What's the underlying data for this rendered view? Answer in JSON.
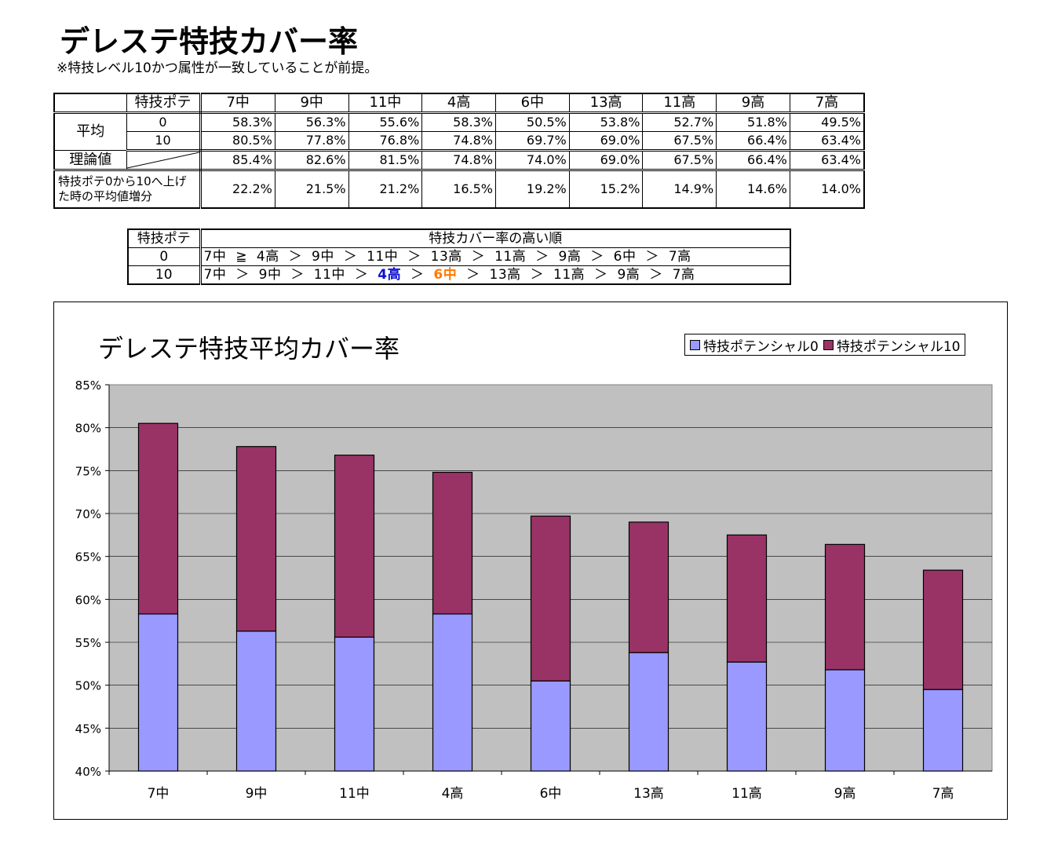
{
  "page": {
    "title": "デレステ特技カバー率",
    "note": "※特技レベル10かつ属性が一致していることが前提。"
  },
  "stats_table": {
    "corner": "",
    "header_label": "特技ポテ",
    "columns": [
      "7中",
      "9中",
      "11中",
      "4高",
      "6中",
      "13高",
      "11高",
      "9高",
      "7高"
    ],
    "avg_label": "平均",
    "avg_rows": [
      {
        "sub": "0",
        "values": [
          "58.3%",
          "56.3%",
          "55.6%",
          "58.3%",
          "50.5%",
          "53.8%",
          "52.7%",
          "51.8%",
          "49.5%"
        ]
      },
      {
        "sub": "10",
        "values": [
          "80.5%",
          "77.8%",
          "76.8%",
          "74.8%",
          "69.7%",
          "69.0%",
          "67.5%",
          "66.4%",
          "63.4%"
        ]
      }
    ],
    "theory_label": "理論値",
    "theory_values": [
      "85.4%",
      "82.6%",
      "81.5%",
      "74.8%",
      "74.0%",
      "69.0%",
      "67.5%",
      "66.4%",
      "63.4%"
    ],
    "increase_label": "特技ポテ0から10へ上げた時の平均値増分",
    "increase_values": [
      "22.2%",
      "21.5%",
      "21.2%",
      "16.5%",
      "19.2%",
      "15.2%",
      "14.9%",
      "14.6%",
      "14.0%"
    ]
  },
  "rank_table": {
    "header_label": "特技ポテ",
    "header_title": "特技カバー率の高い順",
    "rows": [
      {
        "pote": "0",
        "order": [
          "7中",
          "≧",
          "4高",
          "＞",
          "9中",
          "＞",
          "11中",
          "＞",
          "13高",
          "＞",
          "11高",
          "＞",
          "9高",
          "＞",
          "6中",
          "＞",
          "7高"
        ]
      },
      {
        "pote": "10",
        "order": [
          "7中",
          "＞",
          "9中",
          "＞",
          "11中",
          "＞",
          "4高",
          "＞",
          "6中",
          "＞",
          "13高",
          "＞",
          "11高",
          "＞",
          "9高",
          "＞",
          "7高"
        ]
      }
    ],
    "highlights": {
      "4高": "#1010d0",
      "6中": "#ff7a00"
    }
  },
  "chart_data": {
    "type": "bar",
    "title": "デレステ特技平均カバー率",
    "categories": [
      "7中",
      "9中",
      "11中",
      "4高",
      "6中",
      "13高",
      "11高",
      "9高",
      "7高"
    ],
    "series": [
      {
        "name": "特技ポテンシャル0",
        "values": [
          58.3,
          56.3,
          55.6,
          58.3,
          50.5,
          53.8,
          52.7,
          51.8,
          49.5
        ],
        "color": "#9999ff"
      },
      {
        "name": "特技ポテンシャル10",
        "values": [
          80.5,
          77.8,
          76.8,
          74.8,
          69.7,
          69.0,
          67.5,
          66.4,
          63.4
        ],
        "color": "#993366"
      }
    ],
    "ylim": [
      40,
      85
    ],
    "yticks": [
      "40%",
      "45%",
      "50%",
      "55%",
      "60%",
      "65%",
      "70%",
      "75%",
      "80%",
      "85%"
    ],
    "ytick_values": [
      40,
      45,
      50,
      55,
      60,
      65,
      70,
      75,
      80,
      85
    ],
    "grid": true,
    "legend": "top-right",
    "plot_background": "#c0c0c0",
    "xlabel": "",
    "ylabel": ""
  }
}
